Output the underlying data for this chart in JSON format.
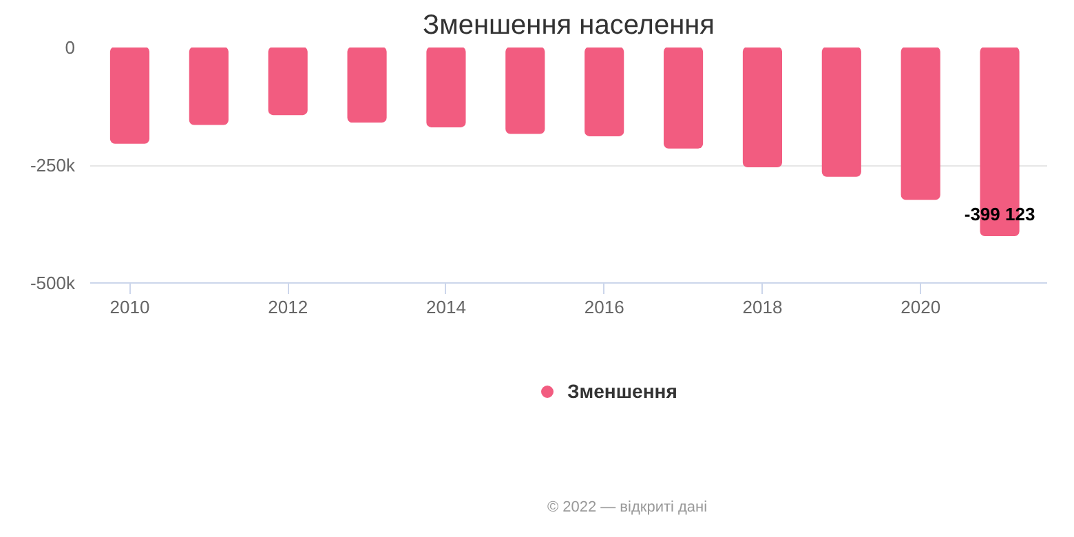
{
  "chart_data": {
    "type": "bar",
    "title": "Зменшення населення",
    "x": [
      2010,
      2011,
      2012,
      2013,
      2014,
      2015,
      2016,
      2017,
      2018,
      2019,
      2020,
      2021
    ],
    "series": [
      {
        "name": "Зменшення",
        "color": "#f25c80",
        "values": [
          -203000,
          -163000,
          -142000,
          -158000,
          -168000,
          -182000,
          -187000,
          -213000,
          -253000,
          -273000,
          -322000,
          -399123
        ],
        "value_labels": [
          null,
          null,
          null,
          null,
          null,
          null,
          null,
          null,
          null,
          null,
          null,
          "-399 123"
        ]
      }
    ],
    "xlim": [
      2009.5,
      2021.6
    ],
    "xticks": [
      2010,
      2012,
      2014,
      2016,
      2018,
      2020
    ],
    "ylim": [
      -500000,
      0
    ],
    "yticks": [
      {
        "value": -500000,
        "label": "-500k"
      },
      {
        "value": -250000,
        "label": "-250k"
      },
      {
        "value": 0,
        "label": "0"
      }
    ],
    "grid": "y",
    "legend": "bottom",
    "marker": "circle",
    "annotations": [
      "© 2022 — відкриті дані"
    ]
  }
}
